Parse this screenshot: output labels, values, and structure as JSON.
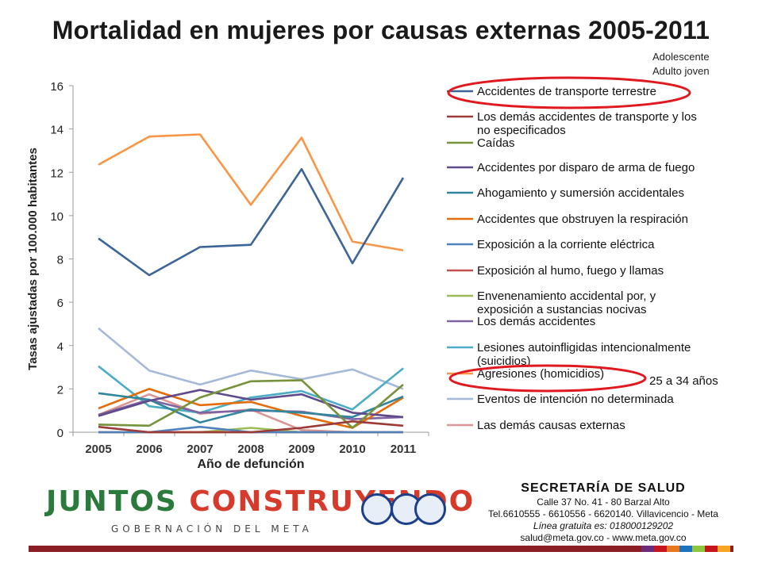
{
  "title": "Mortalidad en mujeres por causas externas 2005-2011",
  "notes": {
    "adolescente": "Adolescente",
    "adulto_joven": "Adulto joven",
    "age_group": "25 a 34 años"
  },
  "chart_data": {
    "type": "line",
    "title": "",
    "xlabel": "Año de defunción",
    "ylabel": "Tasas ajustadas por 100.000 habitantes",
    "x": [
      "2005",
      "2006",
      "2007",
      "2008",
      "2009",
      "2010",
      "2011"
    ],
    "ylim": [
      0,
      16
    ],
    "yticks": [
      0,
      2,
      4,
      6,
      8,
      10,
      12,
      14,
      16
    ],
    "grid": false,
    "legend_position": "right",
    "series": [
      {
        "name": "Accidentes de transporte terrestre",
        "color": "#3c6497",
        "values": [
          8.95,
          7.25,
          8.55,
          8.65,
          12.15,
          7.8,
          11.75
        ]
      },
      {
        "name": "Los demás accidentes de transporte y los no especificados",
        "color": "#9b3a36",
        "values": [
          0.25,
          0.0,
          0.0,
          0.0,
          0.2,
          0.5,
          0.3
        ]
      },
      {
        "name": "Caídas",
        "color": "#76923c",
        "values": [
          0.35,
          0.3,
          1.6,
          2.35,
          2.4,
          0.2,
          2.2
        ]
      },
      {
        "name": "Accidentes por disparo de arma de fuego",
        "color": "#5f4a8b",
        "values": [
          0.75,
          1.45,
          1.95,
          1.5,
          1.75,
          0.9,
          0.7
        ]
      },
      {
        "name": "Ahogamiento y sumersión accidentales",
        "color": "#31859c",
        "values": [
          1.8,
          1.5,
          0.45,
          1.05,
          0.9,
          0.7,
          1.65
        ]
      },
      {
        "name": "Accidentes que obstruyen la respiración",
        "color": "#e46c0a",
        "values": [
          1.1,
          2.0,
          1.25,
          1.4,
          0.75,
          0.2,
          1.6
        ]
      },
      {
        "name": "Exposición a la corriente eléctrica",
        "color": "#4f81bd",
        "values": [
          0.0,
          0.0,
          0.25,
          0.0,
          0.0,
          0.0,
          0.0
        ]
      },
      {
        "name": "Exposición al humo, fuego y llamas",
        "color": "#c0504d",
        "values": [
          0.0,
          0.0,
          0.0,
          0.0,
          0.0,
          0.0,
          0.0
        ]
      },
      {
        "name": "Envenenamiento accidental por, y exposición a sustancias nocivas",
        "color": "#9bbb59",
        "values": [
          0.0,
          0.0,
          0.0,
          0.2,
          0.0,
          0.0,
          0.0
        ]
      },
      {
        "name": "Los demás accidentes",
        "color": "#8064a2",
        "values": [
          0.8,
          1.5,
          0.9,
          1.0,
          0.95,
          0.6,
          0.7
        ]
      },
      {
        "name": "Lesiones autoinfligidas intencionalmente (suicidios)",
        "color": "#4bacc6",
        "values": [
          3.05,
          1.2,
          0.9,
          1.6,
          1.9,
          1.05,
          2.95
        ]
      },
      {
        "name": "Agresiones (homicidios)",
        "color": "#f79646",
        "values": [
          12.35,
          13.65,
          13.75,
          10.5,
          13.6,
          8.8,
          8.4
        ]
      },
      {
        "name": "Eventos de intención no determinada",
        "color": "#a5b9d9",
        "values": [
          4.8,
          2.85,
          2.2,
          2.85,
          2.45,
          2.9,
          2.0
        ]
      },
      {
        "name": "Las demás causas externas",
        "color": "#d99694",
        "values": [
          0.8,
          1.75,
          0.85,
          1.05,
          0.1,
          0.0,
          0.0
        ]
      }
    ]
  },
  "footer": {
    "logo_top": "JUNTOS CONSTRUYENDO",
    "logo_sub": "GOBERNACIÓN DEL META",
    "org": "SECRETARÍA DE SALUD",
    "address": "Calle 37 No. 41 - 80 Barzal Alto",
    "phone": "Tel.6610555 - 6610556 - 6620140. Villavicencio - Meta",
    "line": "Línea gratuita es: 018000129202",
    "email": "salud@meta.gov.co - www.meta.gov.co",
    "colors": [
      "#6d2c7a",
      "#c4161c",
      "#e87722",
      "#1c75bc",
      "#8dc63f",
      "#c4161c",
      "#f6a623"
    ]
  }
}
